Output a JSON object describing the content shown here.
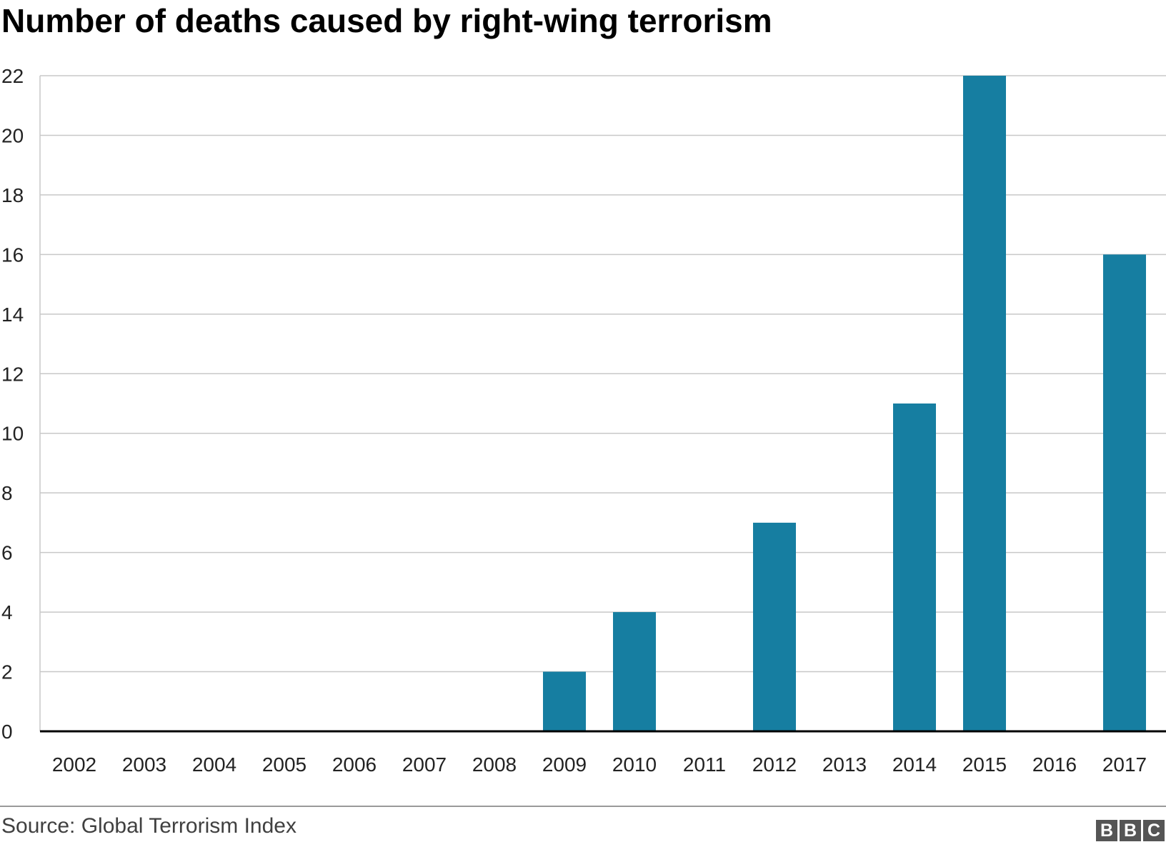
{
  "chart_data": {
    "type": "bar",
    "title": "Number of deaths caused by right-wing terrorism",
    "xlabel": "",
    "ylabel": "",
    "categories": [
      "2002",
      "2003",
      "2004",
      "2005",
      "2006",
      "2007",
      "2008",
      "2009",
      "2010",
      "2011",
      "2012",
      "2013",
      "2014",
      "2015",
      "2016",
      "2017"
    ],
    "values": [
      0,
      0,
      0,
      0,
      0,
      0,
      0,
      2,
      4,
      0,
      7,
      0,
      11,
      22,
      0,
      16
    ],
    "ylim": [
      0,
      22
    ],
    "yticks": [
      "0",
      "2",
      "4",
      "6",
      "8",
      "10",
      "12",
      "14",
      "16",
      "18",
      "20",
      "22"
    ],
    "grid": true,
    "bar_color": "#167ea1"
  },
  "footer": {
    "source": "Source: Global Terrorism Index",
    "logo_letters": [
      "B",
      "B",
      "C"
    ]
  }
}
